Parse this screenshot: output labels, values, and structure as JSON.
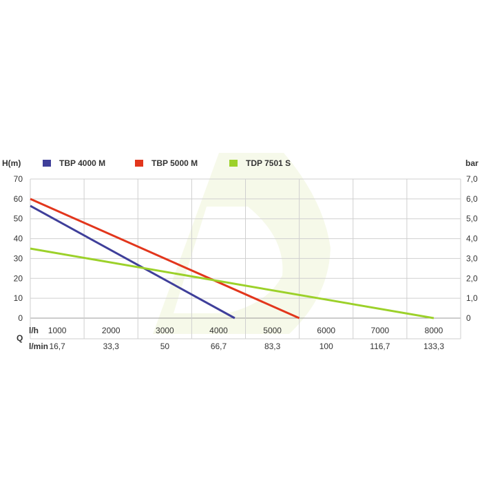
{
  "chart_data": {
    "type": "line",
    "y_left_label": "H(m)",
    "y_right_label": "bar",
    "x_label": "Q",
    "x_unit_primary": "l/h",
    "x_unit_secondary": "l/min",
    "y_left_ticks": [
      "0",
      "10",
      "20",
      "30",
      "40",
      "50",
      "60",
      "70"
    ],
    "y_right_ticks": [
      "1,0",
      "2,0",
      "3,0",
      "4,0",
      "5,0",
      "6,0",
      "7,0"
    ],
    "x_ticks_lh": [
      "1000",
      "2000",
      "3000",
      "4000",
      "5000",
      "6000",
      "7000",
      "8000"
    ],
    "x_ticks_lmin": [
      "16,7",
      "33,3",
      "50",
      "66,7",
      "83,3",
      "100",
      "116,7",
      "133,3"
    ],
    "xlim": [
      0,
      8000
    ],
    "ylim": [
      0,
      70
    ],
    "grid": true,
    "legend_position": "top",
    "series": [
      {
        "name": "TBP 4000 M",
        "color": "#3f3f9a",
        "x": [
          0,
          3800
        ],
        "y": [
          56.5,
          0
        ]
      },
      {
        "name": "TBP 5000 M",
        "color": "#e2361c",
        "x": [
          0,
          5000
        ],
        "y": [
          60,
          0
        ]
      },
      {
        "name": "TDP 7501 S",
        "color": "#9cd12a",
        "x": [
          0,
          7500
        ],
        "y": [
          35,
          0
        ]
      }
    ]
  }
}
